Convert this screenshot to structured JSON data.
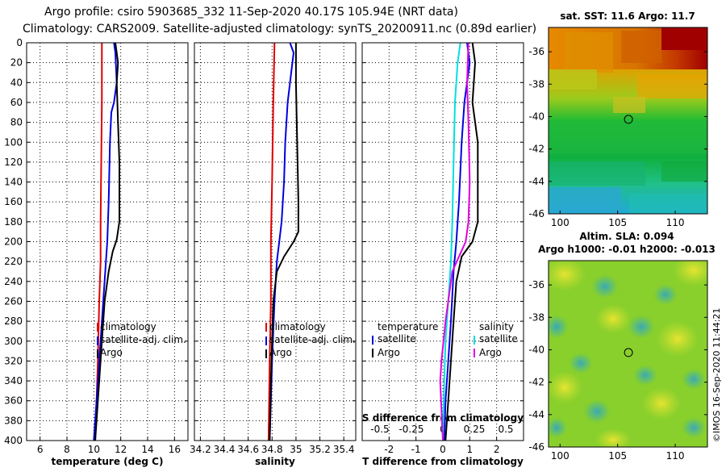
{
  "title": {
    "line1": "Argo profile: csiro 5903685_332 11-Sep-2020 40.17S 105.94E (NRT data)",
    "line2": "Climatology: CARS2009. Satellite-adjusted climatology: synTS_20200911.nc (0.89d earlier)"
  },
  "colors": {
    "climatology": "#e00000",
    "satellite": "#0000e0",
    "argo": "#000000",
    "s_satellite": "#00e0e0",
    "s_argo": "#e000e0"
  },
  "depth_axis": {
    "range": [
      0,
      400
    ],
    "ticks": [
      "0",
      "20",
      "40",
      "60",
      "80",
      "100",
      "120",
      "140",
      "160",
      "180",
      "200",
      "220",
      "240",
      "260",
      "280",
      "300",
      "320",
      "340",
      "360",
      "380",
      "400"
    ]
  },
  "chart_data": [
    {
      "type": "line",
      "name": "temperature-profile",
      "xlabel": "temperature (deg C)",
      "xlim": [
        5,
        17
      ],
      "x_ticks": [
        "6",
        "8",
        "10",
        "12",
        "14",
        "16"
      ],
      "ylim": [
        400,
        0
      ],
      "legend": [
        "climatology",
        "satellite-adj. clim.",
        "Argo"
      ],
      "series": [
        {
          "name": "climatology",
          "color": "#e00000",
          "points": [
            [
              10.6,
              0
            ],
            [
              10.6,
              20
            ],
            [
              10.6,
              60
            ],
            [
              10.55,
              120
            ],
            [
              10.5,
              180
            ],
            [
              10.5,
              220
            ],
            [
              10.4,
              260
            ],
            [
              10.3,
              320
            ],
            [
              10.2,
              360
            ],
            [
              10.1,
              400
            ]
          ]
        },
        {
          "name": "satellite-adj. clim.",
          "color": "#0000e0",
          "points": [
            [
              11.5,
              0
            ],
            [
              11.6,
              10
            ],
            [
              11.7,
              40
            ],
            [
              11.5,
              60
            ],
            [
              11.3,
              70
            ],
            [
              11.2,
              100
            ],
            [
              11.1,
              160
            ],
            [
              11.0,
              200
            ],
            [
              10.9,
              220
            ],
            [
              10.7,
              260
            ],
            [
              10.4,
              320
            ],
            [
              10.2,
              360
            ],
            [
              10.0,
              400
            ]
          ]
        },
        {
          "name": "Argo",
          "color": "#000000",
          "points": [
            [
              11.6,
              0
            ],
            [
              11.8,
              20
            ],
            [
              11.7,
              40
            ],
            [
              11.8,
              80
            ],
            [
              11.9,
              120
            ],
            [
              11.9,
              180
            ],
            [
              11.7,
              198
            ],
            [
              11.4,
              210
            ],
            [
              11.1,
              230
            ],
            [
              10.8,
              260
            ],
            [
              10.6,
              300
            ],
            [
              10.4,
              340
            ],
            [
              10.2,
              380
            ],
            [
              10.1,
              400
            ]
          ]
        }
      ]
    },
    {
      "type": "line",
      "name": "salinity-profile",
      "xlabel": "salinity",
      "xlim": [
        34.15,
        35.5
      ],
      "x_ticks": [
        "34.2",
        "34.4",
        "34.6",
        "34.8",
        "35",
        "35.2",
        "35.4"
      ],
      "ylim": [
        400,
        0
      ],
      "legend": [
        "climatology",
        "satellite-adj. clim.",
        "Argo"
      ],
      "series": [
        {
          "name": "climatology",
          "color": "#e00000",
          "points": [
            [
              34.82,
              0
            ],
            [
              34.81,
              60
            ],
            [
              34.8,
              140
            ],
            [
              34.79,
              200
            ],
            [
              34.79,
              260
            ],
            [
              34.78,
              320
            ],
            [
              34.77,
              400
            ]
          ]
        },
        {
          "name": "satellite-adj. clim.",
          "color": "#0000e0",
          "points": [
            [
              34.95,
              0
            ],
            [
              34.98,
              10
            ],
            [
              34.96,
              30
            ],
            [
              34.93,
              60
            ],
            [
              34.91,
              100
            ],
            [
              34.9,
              140
            ],
            [
              34.88,
              180
            ],
            [
              34.86,
              200
            ],
            [
              34.84,
              220
            ],
            [
              34.82,
              260
            ],
            [
              34.8,
              320
            ],
            [
              34.78,
              400
            ]
          ]
        },
        {
          "name": "Argo",
          "color": "#000000",
          "points": [
            [
              35.0,
              0
            ],
            [
              35.0,
              40
            ],
            [
              35.01,
              100
            ],
            [
              35.02,
              160
            ],
            [
              35.02,
              190
            ],
            [
              34.98,
              200
            ],
            [
              34.9,
              215
            ],
            [
              34.84,
              230
            ],
            [
              34.81,
              260
            ],
            [
              34.8,
              300
            ],
            [
              34.79,
              340
            ],
            [
              34.78,
              400
            ]
          ]
        }
      ]
    },
    {
      "type": "line",
      "name": "difference-profile",
      "xlabel": "T difference from climatology",
      "xlabel_top": "S difference from climatology",
      "xlim": [
        -3,
        3
      ],
      "x_ticks": [
        "-2",
        "-1",
        "0",
        "1",
        "2"
      ],
      "x_ticks_top": [
        "-0.5",
        "-0.25",
        "0",
        "0.25",
        "0.5"
      ],
      "ylim": [
        400,
        0
      ],
      "legend_temperature": {
        "title": "temperature",
        "items": [
          "satellite",
          "Argo"
        ]
      },
      "legend_salinity": {
        "title": "salinity",
        "items": [
          "satellite",
          "Argo"
        ]
      },
      "series": [
        {
          "name": "T satellite",
          "color": "#0000e0",
          "points": [
            [
              0.9,
              0
            ],
            [
              1.0,
              20
            ],
            [
              0.8,
              60
            ],
            [
              0.7,
              100
            ],
            [
              0.6,
              160
            ],
            [
              0.5,
              200
            ],
            [
              0.4,
              230
            ],
            [
              0.3,
              280
            ],
            [
              0.2,
              320
            ],
            [
              0.1,
              360
            ],
            [
              0.05,
              400
            ]
          ]
        },
        {
          "name": "T Argo",
          "color": "#000000",
          "points": [
            [
              1.1,
              0
            ],
            [
              1.2,
              20
            ],
            [
              1.1,
              60
            ],
            [
              1.3,
              100
            ],
            [
              1.3,
              180
            ],
            [
              1.1,
              200
            ],
            [
              0.7,
              215
            ],
            [
              0.5,
              240
            ],
            [
              0.4,
              280
            ],
            [
              0.3,
              320
            ],
            [
              0.2,
              360
            ],
            [
              0.1,
              400
            ]
          ]
        },
        {
          "name": "S satellite",
          "color": "#00e0e0",
          "points": [
            [
              0.65,
              0
            ],
            [
              0.55,
              20
            ],
            [
              0.45,
              60
            ],
            [
              0.4,
              120
            ],
            [
              0.35,
              180
            ],
            [
              0.3,
              220
            ],
            [
              0.2,
              260
            ],
            [
              0.1,
              300
            ],
            [
              0.05,
              340
            ],
            [
              0.0,
              400
            ]
          ]
        },
        {
          "name": "S Argo",
          "color": "#e000e0",
          "points": [
            [
              0.95,
              0
            ],
            [
              0.9,
              40
            ],
            [
              0.95,
              80
            ],
            [
              1.0,
              140
            ],
            [
              0.95,
              180
            ],
            [
              0.85,
              200
            ],
            [
              0.6,
              215
            ],
            [
              0.35,
              230
            ],
            [
              0.1,
              280
            ],
            [
              -0.05,
              320
            ],
            [
              -0.1,
              340
            ],
            [
              0.0,
              400
            ]
          ]
        }
      ]
    }
  ],
  "map_sst": {
    "title": "sat. SST: 11.6 Argo: 11.7",
    "y_ticks": [
      "-36",
      "-38",
      "-40",
      "-42",
      "-44",
      "-46"
    ],
    "x_ticks": [
      "100",
      "105",
      "110"
    ],
    "lon_range": [
      99,
      112.8
    ],
    "lat_range": [
      -46,
      -34.5
    ],
    "argo_position": [
      105.94,
      -40.17
    ]
  },
  "map_sla": {
    "title1": "Altim. SLA: 0.094",
    "title2": "Argo h1000: -0.01 h2000: -0.013",
    "y_ticks": [
      "-36",
      "-38",
      "-40",
      "-42",
      "-44",
      "-46"
    ],
    "x_ticks": [
      "100",
      "105",
      "110"
    ],
    "lon_range": [
      99,
      112.8
    ],
    "lat_range": [
      -46,
      -34.5
    ],
    "argo_position": [
      105.94,
      -40.17
    ]
  },
  "stamp": "©IMOS 16-Sep-2020 11:44:21"
}
